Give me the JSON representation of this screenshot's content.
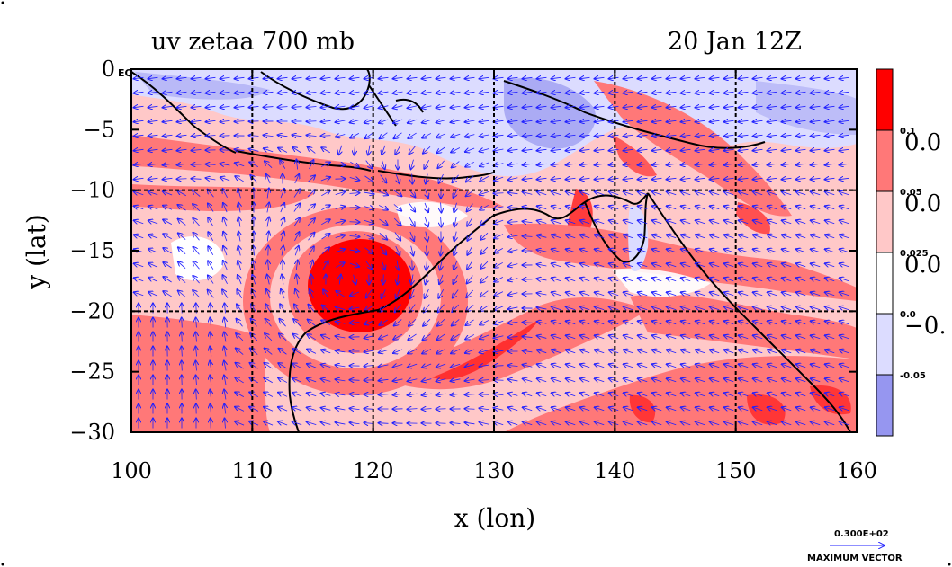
{
  "title_left": "uv zetaa 700 mb",
  "title_right": "20 Jan 12Z",
  "x_axis": {
    "label": "x (lon)",
    "ticks": [
      "100",
      "110",
      "120",
      "130",
      "140",
      "150",
      "160"
    ],
    "values": [
      100,
      110,
      120,
      130,
      140,
      150,
      160
    ],
    "range": [
      100,
      160
    ]
  },
  "y_axis": {
    "label": "y (lat)",
    "ticks": [
      "0",
      "−5",
      "−10",
      "−15",
      "−20",
      "−25",
      "−30"
    ],
    "values": [
      0,
      -5,
      -10,
      -15,
      -20,
      -25,
      -30
    ],
    "range": [
      -30,
      0
    ]
  },
  "equator_label": "EQ",
  "grid_dashed_lon": [
    110,
    120,
    130,
    140,
    150
  ],
  "grid_dashed_lat": [
    -10,
    -20
  ],
  "colorbar": {
    "colors": [
      "#ff0000",
      "#ff7878",
      "#ffc8c8",
      "#ffffff",
      "#dcdcff",
      "#9696f0"
    ],
    "small_labels": [
      "0.1",
      "0.05",
      "0.025",
      "0.0",
      "-0.05"
    ],
    "big_labels": [
      "0.0",
      "0.0",
      "0.0",
      "−0."
    ]
  },
  "vector_key": {
    "value": "0.300E+02",
    "caption": "MAXIMUM VECTOR"
  },
  "colors": {
    "strong_pos": "#ff0000",
    "mid_pos": "#ff7878",
    "weak_pos": "#ffc8c8",
    "neg": "#dcdcff",
    "strong_neg": "#9696f0",
    "vector": "#1f1fff",
    "coast": "#000000"
  },
  "cyclone_center": {
    "lon": 118,
    "lat": -17.5
  }
}
